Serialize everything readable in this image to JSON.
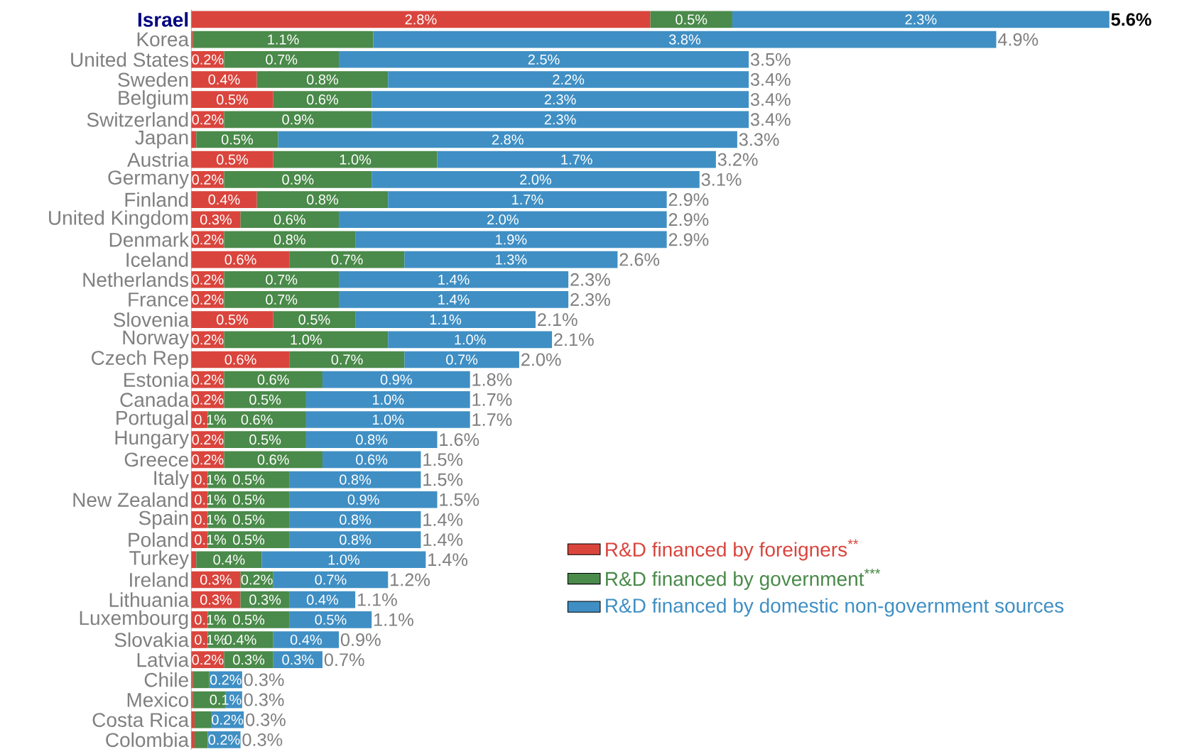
{
  "chart_data": {
    "type": "bar",
    "orientation": "horizontal",
    "stacked": true,
    "legend": "bottom right",
    "categories": [
      "Israel",
      "Korea",
      "United States",
      "Sweden",
      "Belgium",
      "Switzerland",
      "Japan",
      "Austria",
      "Germany",
      "Finland",
      "United Kingdom",
      "Denmark",
      "Iceland",
      "Netherlands",
      "France",
      "Slovenia",
      "Norway",
      "Czech Rep",
      "Estonia",
      "Canada",
      "Portugal",
      "Hungary",
      "Greece",
      "Italy",
      "New Zealand",
      "Spain",
      "Poland",
      "Turkey",
      "Ireland",
      "Lithuania",
      "Luxembourg",
      "Slovakia",
      "Latvia",
      "Chile",
      "Mexico",
      "Costa Rica",
      "Colombia"
    ],
    "series": [
      {
        "name": "R&D financed by foreigners$^{**}$",
        "color": "#d9453d",
        "values": [
          2.8,
          0.01,
          0.2,
          0.4,
          0.5,
          0.2,
          0.03,
          0.5,
          0.2,
          0.4,
          0.3,
          0.2,
          0.6,
          0.2,
          0.2,
          0.5,
          0.2,
          0.6,
          0.2,
          0.2,
          0.1,
          0.2,
          0.2,
          0.1,
          0.1,
          0.1,
          0.1,
          0.03,
          0.3,
          0.3,
          0.1,
          0.1,
          0.2,
          0.01,
          0.01,
          0.02,
          0.02
        ],
        "value_labels": [
          "2.8%",
          null,
          "0.2%",
          "0.4%",
          "0.5%",
          "0.2%",
          null,
          "0.5%",
          "0.2%",
          "0.4%",
          "0.3%",
          "0.2%",
          "0.6%",
          "0.2%",
          "0.2%",
          "0.5%",
          "0.2%",
          "0.6%",
          "0.2%",
          "0.2%",
          "0.1%",
          "0.2%",
          "0.2%",
          "0.1%",
          "0.1%",
          "0.1%",
          "0.1%",
          null,
          "0.3%",
          "0.3%",
          "0.1%",
          "0.1%",
          "0.2%",
          null,
          null,
          null,
          null
        ]
      },
      {
        "name": "R&D financed by government$^{***}$",
        "color": "#4a8a4a",
        "values": [
          0.5,
          1.1,
          0.7,
          0.8,
          0.6,
          0.9,
          0.5,
          1.0,
          0.9,
          0.8,
          0.6,
          0.8,
          0.7,
          0.7,
          0.7,
          0.5,
          1.0,
          0.7,
          0.6,
          0.5,
          0.6,
          0.5,
          0.6,
          0.5,
          0.5,
          0.5,
          0.5,
          0.4,
          0.2,
          0.3,
          0.5,
          0.4,
          0.3,
          0.1,
          0.2,
          0.1,
          0.08
        ],
        "value_labels": [
          "0.5%",
          "1.1%",
          "0.7%",
          "0.8%",
          "0.6%",
          "0.9%",
          "0.5%",
          "1.0%",
          "0.9%",
          "0.8%",
          "0.6%",
          "0.8%",
          "0.7%",
          "0.7%",
          "0.7%",
          "0.5%",
          "1.0%",
          "0.7%",
          "0.6%",
          "0.5%",
          "0.6%",
          "0.5%",
          "0.6%",
          "0.5%",
          "0.5%",
          "0.5%",
          "0.5%",
          "0.4%",
          "0.2%",
          "0.3%",
          "0.5%",
          "0.4%",
          "0.3%",
          null,
          null,
          null,
          null
        ]
      },
      {
        "name": "R&D financed by domestic non-government sources",
        "color": "#3f8fc4",
        "values": [
          2.3,
          3.8,
          2.5,
          2.2,
          2.3,
          2.3,
          2.8,
          1.7,
          2.0,
          1.7,
          2.0,
          1.9,
          1.3,
          1.4,
          1.4,
          1.1,
          1.0,
          0.7,
          0.9,
          1.0,
          1.0,
          0.8,
          0.6,
          0.8,
          0.9,
          0.8,
          0.8,
          1.0,
          0.7,
          0.4,
          0.5,
          0.4,
          0.3,
          0.2,
          0.1,
          0.2,
          0.2
        ],
        "value_labels": [
          "2.3%",
          "3.8%",
          "2.5%",
          "2.2%",
          "2.3%",
          "2.3%",
          "2.8%",
          "1.7%",
          "2.0%",
          "1.7%",
          "2.0%",
          "1.9%",
          "1.3%",
          "1.4%",
          "1.4%",
          "1.1%",
          "1.0%",
          "0.7%",
          "0.9%",
          "1.0%",
          "1.0%",
          "0.8%",
          "0.6%",
          "0.8%",
          "0.9%",
          "0.8%",
          "0.8%",
          "1.0%",
          "0.7%",
          "0.4%",
          "0.5%",
          "0.4%",
          "0.3%",
          "0.2%",
          "0.1%",
          "0.2%",
          "0.2%"
        ]
      }
    ],
    "totals": [
      "5.6%",
      "4.9%",
      "3.5%",
      "3.4%",
      "3.4%",
      "3.4%",
      "3.3%",
      "3.2%",
      "3.1%",
      "2.9%",
      "2.9%",
      "2.9%",
      "2.6%",
      "2.3%",
      "2.3%",
      "2.1%",
      "2.1%",
      "2.0%",
      "1.8%",
      "1.7%",
      "1.7%",
      "1.6%",
      "1.5%",
      "1.5%",
      "1.5%",
      "1.4%",
      "1.4%",
      "1.4%",
      "1.2%",
      "1.1%",
      "1.1%",
      "0.9%",
      "0.7%",
      "0.3%",
      "0.3%",
      "0.3%",
      "0.3%"
    ]
  }
}
